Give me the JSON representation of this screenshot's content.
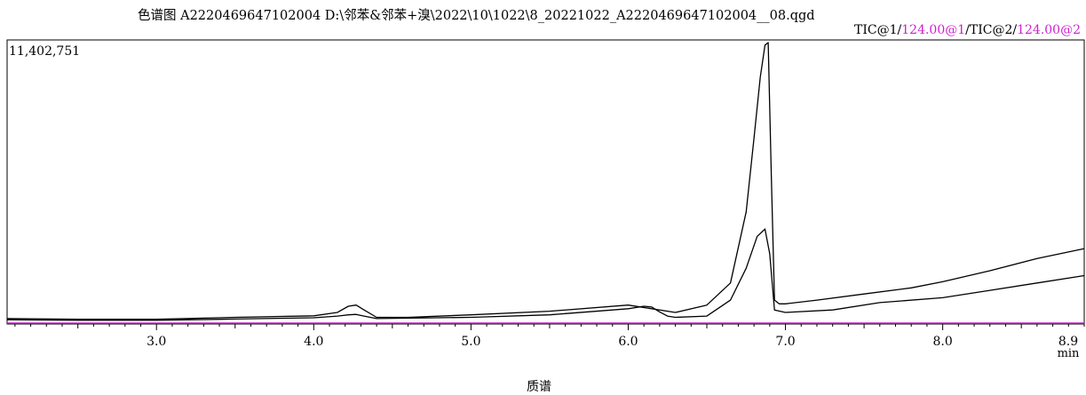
{
  "header": {
    "title": "色谱图 A2220469647102004 D:\\邻苯&邻苯+溴\\2022\\10\\1022\\8_20221022_A2220469647102004__08.qgd"
  },
  "legend": {
    "tic1": "TIC@1/",
    "mass1": "124.00@1",
    "sep": "/",
    "tic2": "TIC@2/",
    "mass2": "124.00@2"
  },
  "footer": {
    "section_label": "质谱"
  },
  "chart_data": {
    "type": "line",
    "title": "",
    "xlabel": "min",
    "ylabel": "",
    "xlim": [
      2.05,
      8.9
    ],
    "ylim": [
      0,
      11402751
    ],
    "y_max_label": "11,402,751",
    "x_ticks": [
      3.0,
      4.0,
      5.0,
      6.0,
      7.0,
      8.0,
      8.9
    ],
    "x_tick_labels": [
      "3.0",
      "4.0",
      "5.0",
      "6.0",
      "7.0",
      "8.0",
      "8.9"
    ],
    "grid": false,
    "baseline_color": "#d020d0",
    "series": [
      {
        "color": "#000000",
        "x": [
          2.05,
          2.5,
          3.0,
          3.5,
          4.0,
          4.15,
          4.22,
          4.27,
          4.32,
          4.4,
          4.6,
          5.0,
          5.5,
          6.0,
          6.3,
          6.5,
          6.65,
          6.75,
          6.8,
          6.84,
          6.87,
          6.89,
          6.91,
          6.93,
          6.96,
          7.0,
          7.2,
          7.5,
          7.8,
          8.0,
          8.3,
          8.6,
          8.9
        ],
        "y": [
          150000,
          120000,
          120000,
          200000,
          260000,
          400000,
          650000,
          700000,
          500000,
          200000,
          200000,
          300000,
          450000,
          700000,
          400000,
          700000,
          1600000,
          4500000,
          7500000,
          10000000,
          11300000,
          11402751,
          6000000,
          900000,
          750000,
          750000,
          900000,
          1150000,
          1400000,
          1650000,
          2100000,
          2600000,
          3000000
        ]
      },
      {
        "color": "#000000",
        "x": [
          2.05,
          2.5,
          3.0,
          3.5,
          4.0,
          4.15,
          4.22,
          4.27,
          4.32,
          4.4,
          5.0,
          5.5,
          6.0,
          6.1,
          6.15,
          6.2,
          6.25,
          6.3,
          6.5,
          6.65,
          6.75,
          6.82,
          6.87,
          6.9,
          6.93,
          7.0,
          7.3,
          7.6,
          8.0,
          8.3,
          8.6,
          8.9
        ],
        "y": [
          100000,
          80000,
          80000,
          130000,
          180000,
          250000,
          300000,
          320000,
          250000,
          150000,
          200000,
          300000,
          550000,
          650000,
          620000,
          420000,
          250000,
          200000,
          250000,
          900000,
          2200000,
          3500000,
          3800000,
          2800000,
          500000,
          400000,
          500000,
          800000,
          1000000,
          1300000,
          1600000,
          1900000
        ]
      }
    ]
  }
}
